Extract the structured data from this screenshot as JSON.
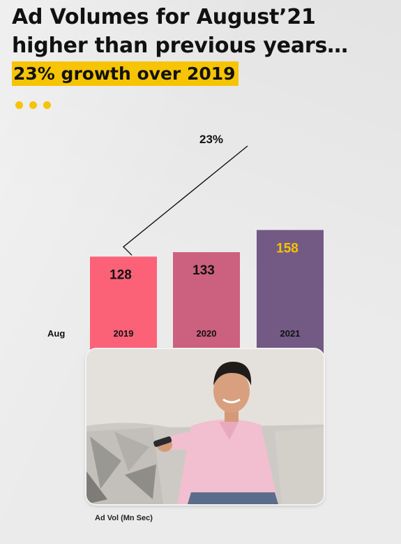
{
  "title_lines": [
    "Ad Volumes for August’21",
    "higher than previous years…"
  ],
  "subtitle": "23% growth over 2019",
  "colors": {
    "accent": "#f6c400",
    "bar_2019": "#fb6278",
    "bar_2020": "#cc607f",
    "bar_2021": "#735a85",
    "highlight_label": "#f6c400"
  },
  "chart_data": {
    "type": "bar",
    "row_label": "Aug",
    "categories": [
      "2019",
      "2020",
      "2021"
    ],
    "values": [
      128,
      133,
      158
    ],
    "value_labels": [
      "128",
      "133",
      "158"
    ],
    "growth_annotation": "23%",
    "xlabel": "",
    "ylabel": "Ad Vol (Mn Sec)",
    "ylim": [
      0,
      165
    ]
  },
  "photo": {
    "icon": "man-with-tv-remote-photo"
  },
  "footer_label": "Ad Vol (Mn Sec)"
}
